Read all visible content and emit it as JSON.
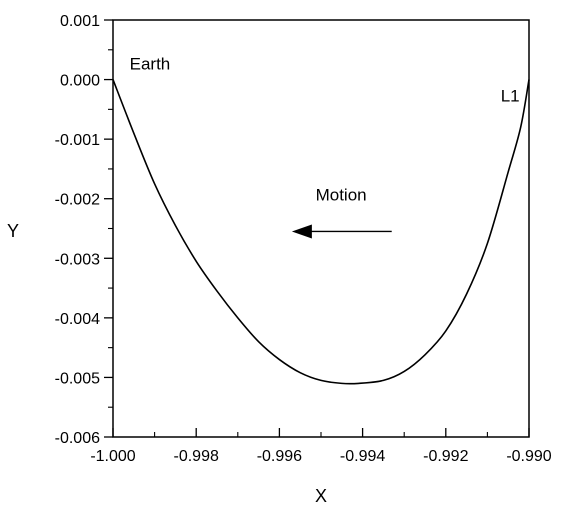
{
  "chart_data": {
    "type": "line",
    "title": "",
    "xlabel": "X",
    "ylabel": "Y",
    "xlim": [
      -1.0,
      -0.99
    ],
    "ylim": [
      -0.006,
      0.001
    ],
    "x_ticks": [
      "-1.000",
      "-0.998",
      "-0.996",
      "-0.994",
      "-0.992",
      "-0.990"
    ],
    "y_ticks": [
      "0.001",
      "0.000",
      "-0.001",
      "-0.002",
      "-0.003",
      "-0.004",
      "-0.005",
      "-0.006"
    ],
    "grid": false,
    "legend": "none",
    "series": [
      {
        "x": [
          -1.0,
          -0.9995,
          -0.999,
          -0.9985,
          -0.998,
          -0.9975,
          -0.997,
          -0.9965,
          -0.996,
          -0.9955,
          -0.995,
          -0.9945,
          -0.9941,
          -0.9935,
          -0.993,
          -0.9925,
          -0.992,
          -0.9915,
          -0.991,
          -0.9905,
          -0.9902,
          -0.99
        ],
        "y": [
          0.0,
          -0.0009,
          -0.00175,
          -0.00245,
          -0.00305,
          -0.00355,
          -0.004,
          -0.0044,
          -0.0047,
          -0.00492,
          -0.00505,
          -0.0051,
          -0.0051,
          -0.00505,
          -0.0049,
          -0.00462,
          -0.00422,
          -0.0036,
          -0.00275,
          -0.00155,
          -0.0008,
          0.0
        ]
      }
    ],
    "annotations": [
      {
        "text": "Earth",
        "x": -0.9996,
        "y": 0.00017
      },
      {
        "text": "L1",
        "x": -0.99068,
        "y": -0.00037
      },
      {
        "text": "Motion",
        "x": -0.99513,
        "y": -0.00203
      },
      {
        "text": "arrow",
        "x_start": -0.9933,
        "x_end": -0.9957,
        "y": -0.00255
      }
    ]
  }
}
